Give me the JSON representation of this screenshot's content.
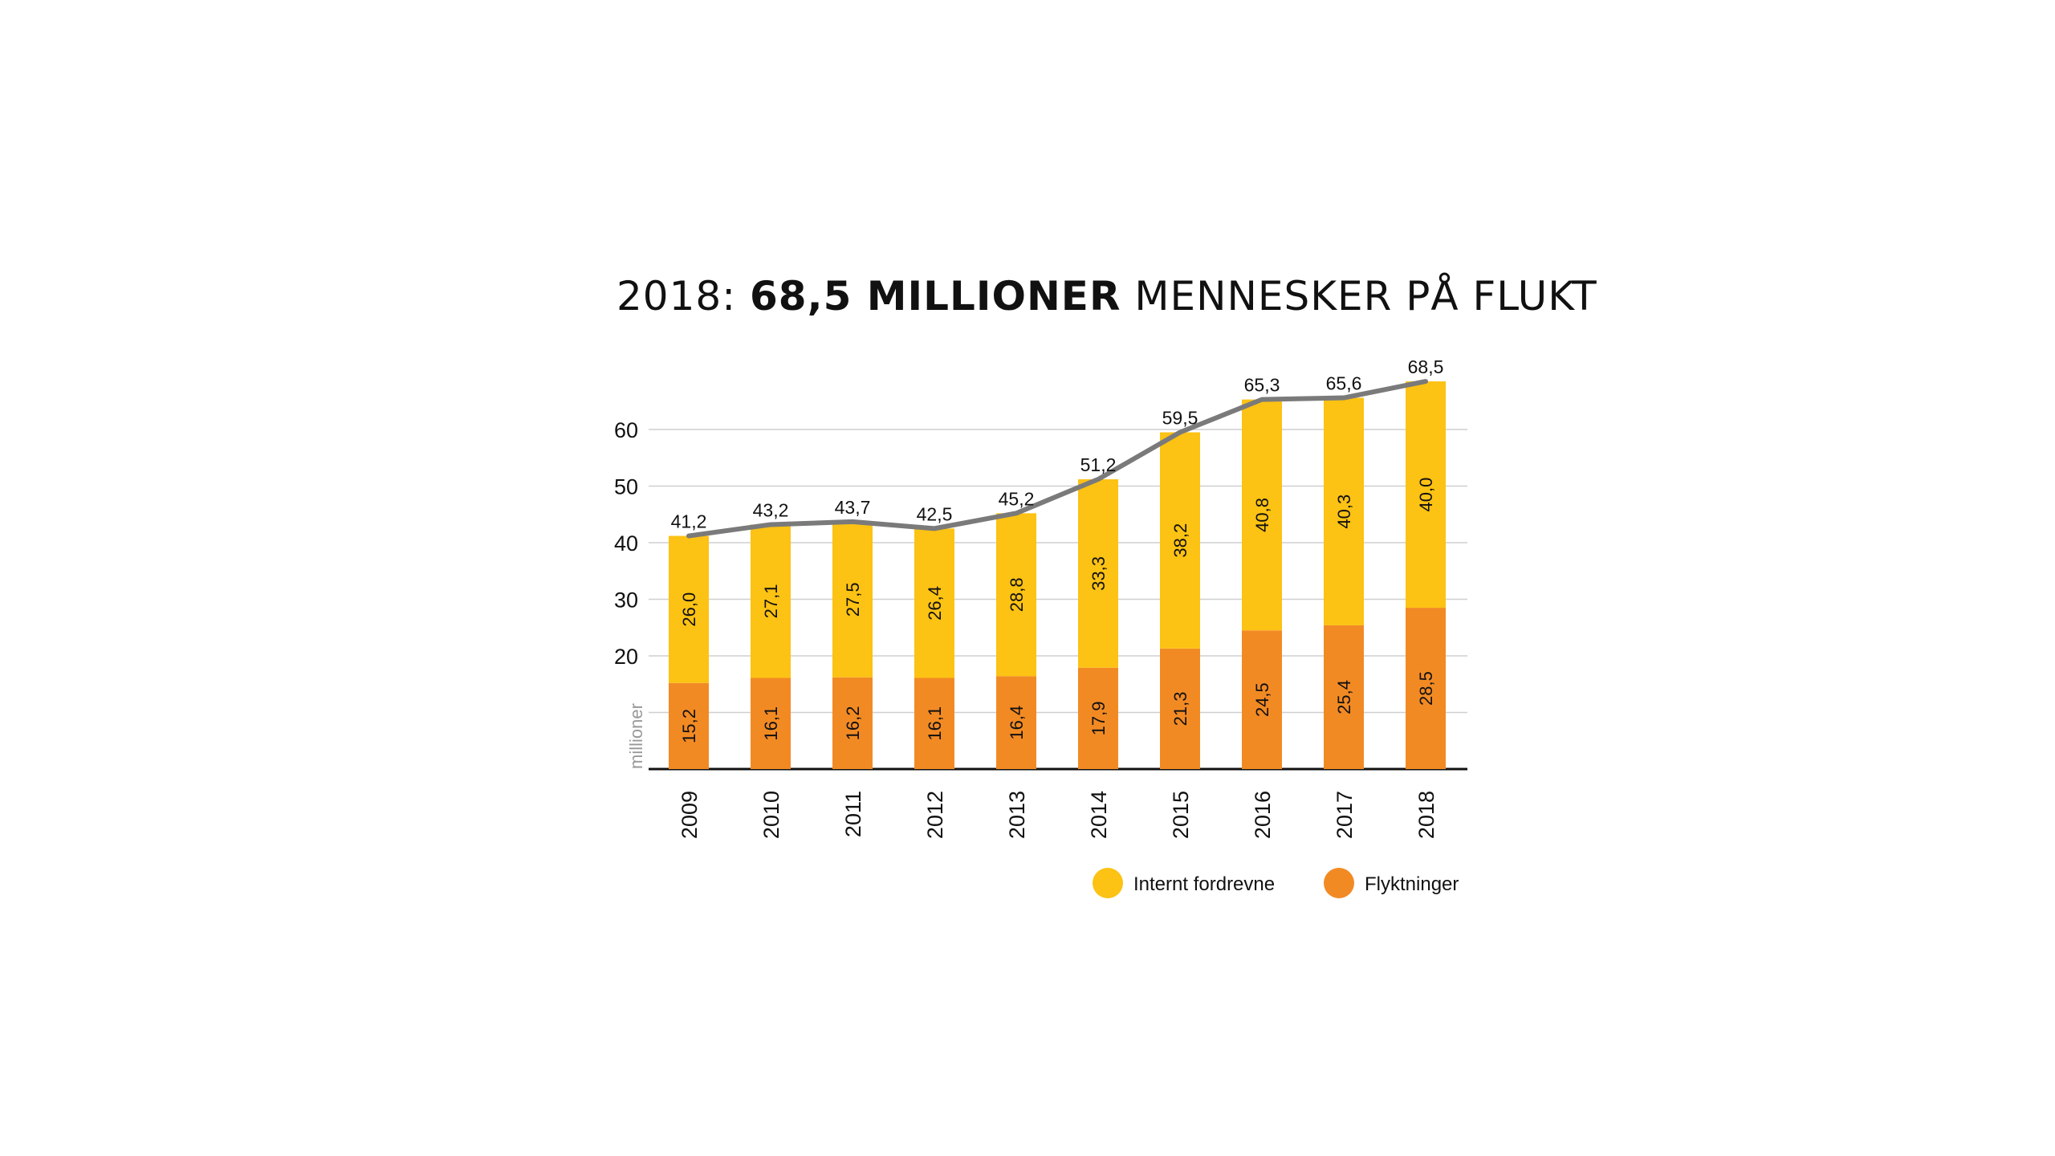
{
  "title": {
    "prefix": "2018:",
    "bold": "68,5 MILLIONER",
    "suffix": "MENNESKER PÅ FLUKT"
  },
  "chart_data": {
    "type": "bar",
    "stacked": true,
    "categories": [
      "2009",
      "2010",
      "2011",
      "2012",
      "2013",
      "2014",
      "2015",
      "2016",
      "2017",
      "2018"
    ],
    "series": [
      {
        "name": "Flyktninger",
        "color": "#f28a24",
        "values": [
          15.2,
          16.1,
          16.2,
          16.1,
          16.4,
          17.9,
          21.3,
          24.5,
          25.4,
          28.5
        ],
        "labels": [
          "15,2",
          "16,1",
          "16,2",
          "16,1",
          "16,4",
          "17,9",
          "21,3",
          "24,5",
          "25,4",
          "28,5"
        ]
      },
      {
        "name": "Internt fordrevne",
        "color": "#fcc214",
        "values": [
          26.0,
          27.1,
          27.5,
          26.4,
          28.8,
          33.3,
          38.2,
          40.8,
          40.3,
          40.0
        ],
        "labels": [
          "26,0",
          "27,1",
          "27,5",
          "26,4",
          "28,8",
          "33,3",
          "38,2",
          "40,8",
          "40,3",
          "40,0"
        ]
      }
    ],
    "totals": {
      "values": [
        41.2,
        43.2,
        43.7,
        42.5,
        45.2,
        51.2,
        59.5,
        65.3,
        65.6,
        68.5
      ],
      "labels": [
        "41,2",
        "43,2",
        "43,7",
        "42,5",
        "45,2",
        "51,2",
        "59,5",
        "65,3",
        "65,6",
        "68,5"
      ],
      "line_color": "#7a7a7a"
    },
    "ylabel": "millioner",
    "yticks": [
      20,
      30,
      40,
      50,
      60
    ],
    "ylim": [
      0,
      70
    ],
    "grid": true,
    "legend": {
      "placement": "bottom-right",
      "items": [
        "Internt fordrevne",
        "Flyktninger"
      ]
    }
  }
}
